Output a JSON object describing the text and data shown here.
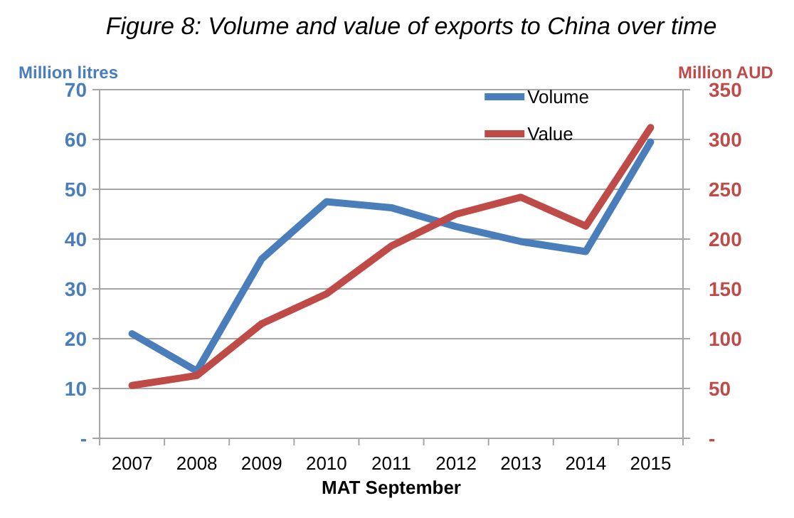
{
  "chart_data": {
    "type": "line",
    "title": "Figure 8: Volume and value of exports to China over time",
    "xlabel": "MAT September",
    "ylabel": "Million litres",
    "y2label": "Million AUD",
    "categories": [
      "2007",
      "2008",
      "2009",
      "2010",
      "2011",
      "2012",
      "2013",
      "2014",
      "2015"
    ],
    "series": [
      {
        "name": "Volume",
        "color": "#4a7ebb",
        "values": [
          21,
          13.5,
          36,
          47.5,
          46.3,
          42.5,
          39.5,
          37.5,
          59.5
        ]
      },
      {
        "name": "Value",
        "color": "#be4b48",
        "axis": "y2",
        "values": [
          53,
          63,
          115,
          145,
          193,
          225,
          242,
          213,
          312
        ]
      }
    ],
    "ylim": [
      0,
      70
    ],
    "yticks": [
      {
        "value": 0,
        "label": "-"
      },
      10,
      20,
      30,
      40,
      50,
      60,
      70
    ],
    "y2lim": [
      0,
      350
    ],
    "y2ticks": [
      {
        "value": 0,
        "label": "-"
      },
      50,
      100,
      150,
      200,
      250,
      300,
      350
    ],
    "grid": "y",
    "legend": "top right",
    "marker": "none",
    "line_style": "solid"
  }
}
